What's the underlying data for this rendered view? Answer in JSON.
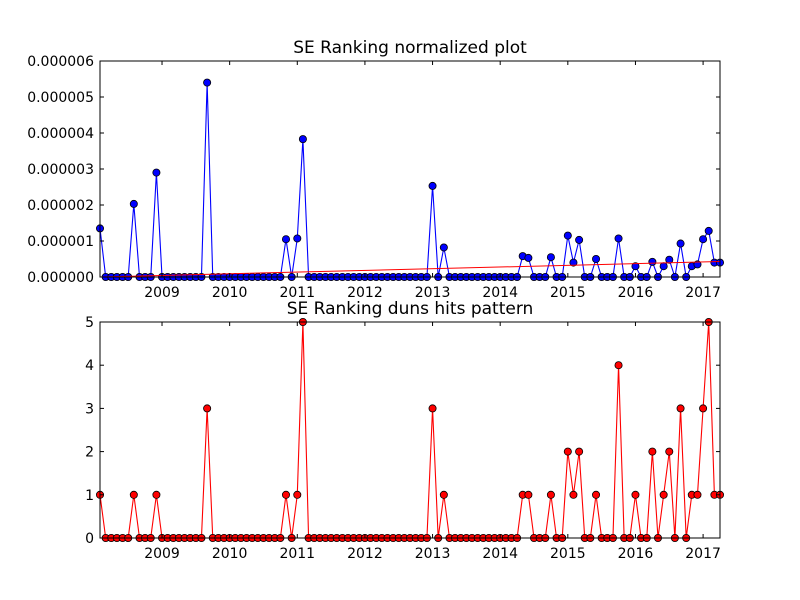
{
  "colors": {
    "blue": "#0000ff",
    "red": "#ff0000",
    "trend": "#ff0000"
  },
  "chart_data": [
    {
      "type": "line",
      "title": "SE Ranking normalized plot",
      "xlabel": "",
      "ylabel": "",
      "xlim": [
        2008.083,
        2017.25
      ],
      "ylim": [
        0,
        6e-06
      ],
      "yticks": [
        "0.000000",
        "0.000001",
        "0.000002",
        "0.000003",
        "0.000004",
        "0.000005",
        "0.000006"
      ],
      "ytick_values": [
        0,
        1e-06,
        2e-06,
        3e-06,
        4e-06,
        5e-06,
        6e-06
      ],
      "xticks": [
        "2009",
        "2010",
        "2011",
        "2012",
        "2013",
        "2014",
        "2015",
        "2016",
        "2017"
      ],
      "xtick_values": [
        2009,
        2010,
        2011,
        2012,
        2013,
        2014,
        2015,
        2016,
        2017
      ],
      "grid": false,
      "series": [
        {
          "values": [
            [
              2008.083,
              1.35e-06
            ],
            [
              2008.167,
              0
            ],
            [
              2008.25,
              0
            ],
            [
              2008.333,
              0
            ],
            [
              2008.417,
              0
            ],
            [
              2008.5,
              0
            ],
            [
              2008.583,
              2.03e-06
            ],
            [
              2008.667,
              0
            ],
            [
              2008.75,
              0
            ],
            [
              2008.833,
              0
            ],
            [
              2008.917,
              2.9e-06
            ],
            [
              2009.0,
              0
            ],
            [
              2009.083,
              0
            ],
            [
              2009.167,
              0
            ],
            [
              2009.25,
              0
            ],
            [
              2009.333,
              0
            ],
            [
              2009.417,
              0
            ],
            [
              2009.5,
              0
            ],
            [
              2009.583,
              0
            ],
            [
              2009.667,
              5.4e-06
            ],
            [
              2009.75,
              0
            ],
            [
              2009.833,
              0
            ],
            [
              2009.917,
              0
            ],
            [
              2010.0,
              0
            ],
            [
              2010.083,
              0
            ],
            [
              2010.167,
              0
            ],
            [
              2010.25,
              0
            ],
            [
              2010.333,
              0
            ],
            [
              2010.417,
              0
            ],
            [
              2010.5,
              0
            ],
            [
              2010.583,
              0
            ],
            [
              2010.667,
              0
            ],
            [
              2010.75,
              0
            ],
            [
              2010.833,
              1.05e-06
            ],
            [
              2010.917,
              0
            ],
            [
              2011.0,
              1.07e-06
            ],
            [
              2011.083,
              3.83e-06
            ],
            [
              2011.167,
              0
            ],
            [
              2011.25,
              0
            ],
            [
              2011.333,
              0
            ],
            [
              2011.417,
              0
            ],
            [
              2011.5,
              0
            ],
            [
              2011.583,
              0
            ],
            [
              2011.667,
              0
            ],
            [
              2011.75,
              0
            ],
            [
              2011.833,
              0
            ],
            [
              2011.917,
              0
            ],
            [
              2012.0,
              0
            ],
            [
              2012.083,
              0
            ],
            [
              2012.167,
              0
            ],
            [
              2012.25,
              0
            ],
            [
              2012.333,
              0
            ],
            [
              2012.417,
              0
            ],
            [
              2012.5,
              0
            ],
            [
              2012.583,
              0
            ],
            [
              2012.667,
              0
            ],
            [
              2012.75,
              0
            ],
            [
              2012.833,
              0
            ],
            [
              2012.917,
              0
            ],
            [
              2013.0,
              2.53e-06
            ],
            [
              2013.083,
              0
            ],
            [
              2013.167,
              8.2e-07
            ],
            [
              2013.25,
              0
            ],
            [
              2013.333,
              0
            ],
            [
              2013.417,
              0
            ],
            [
              2013.5,
              0
            ],
            [
              2013.583,
              0
            ],
            [
              2013.667,
              0
            ],
            [
              2013.75,
              0
            ],
            [
              2013.833,
              0
            ],
            [
              2013.917,
              0
            ],
            [
              2014.0,
              0
            ],
            [
              2014.083,
              0
            ],
            [
              2014.167,
              0
            ],
            [
              2014.25,
              0
            ],
            [
              2014.333,
              5.8e-07
            ],
            [
              2014.417,
              5.3e-07
            ],
            [
              2014.5,
              0
            ],
            [
              2014.583,
              0
            ],
            [
              2014.667,
              0
            ],
            [
              2014.75,
              5.5e-07
            ],
            [
              2014.833,
              0
            ],
            [
              2014.917,
              0
            ],
            [
              2015.0,
              1.15e-06
            ],
            [
              2015.083,
              4e-07
            ],
            [
              2015.167,
              1.03e-06
            ],
            [
              2015.25,
              0
            ],
            [
              2015.333,
              0
            ],
            [
              2015.417,
              5e-07
            ],
            [
              2015.5,
              0
            ],
            [
              2015.583,
              0
            ],
            [
              2015.667,
              0
            ],
            [
              2015.75,
              1.07e-06
            ],
            [
              2015.833,
              0
            ],
            [
              2015.917,
              0
            ],
            [
              2016.0,
              3e-07
            ],
            [
              2016.083,
              0
            ],
            [
              2016.167,
              0
            ],
            [
              2016.25,
              4.2e-07
            ],
            [
              2016.333,
              0
            ],
            [
              2016.417,
              3e-07
            ],
            [
              2016.5,
              4.8e-07
            ],
            [
              2016.583,
              0
            ],
            [
              2016.667,
              9.3e-07
            ],
            [
              2016.75,
              0
            ],
            [
              2016.833,
              3e-07
            ],
            [
              2016.917,
              3.5e-07
            ],
            [
              2017.0,
              1.05e-06
            ],
            [
              2017.083,
              1.28e-06
            ],
            [
              2017.167,
              4e-07
            ],
            [
              2017.25,
              4e-07
            ]
          ]
        },
        {
          "style": "trend",
          "values": [
            [
              2008.083,
              0
            ],
            [
              2017.25,
              4.3e-07
            ]
          ]
        }
      ]
    },
    {
      "type": "line",
      "title": "SE Ranking duns hits pattern",
      "xlabel": "",
      "ylabel": "",
      "xlim": [
        2008.083,
        2017.25
      ],
      "ylim": [
        0,
        5
      ],
      "yticks": [
        "0",
        "1",
        "2",
        "3",
        "4",
        "5"
      ],
      "ytick_values": [
        0,
        1,
        2,
        3,
        4,
        5
      ],
      "xticks": [
        "2009",
        "2010",
        "2011",
        "2012",
        "2013",
        "2014",
        "2015",
        "2016",
        "2017"
      ],
      "xtick_values": [
        2009,
        2010,
        2011,
        2012,
        2013,
        2014,
        2015,
        2016,
        2017
      ],
      "grid": false,
      "series": [
        {
          "values": [
            [
              2008.083,
              1
            ],
            [
              2008.167,
              0
            ],
            [
              2008.25,
              0
            ],
            [
              2008.333,
              0
            ],
            [
              2008.417,
              0
            ],
            [
              2008.5,
              0
            ],
            [
              2008.583,
              1
            ],
            [
              2008.667,
              0
            ],
            [
              2008.75,
              0
            ],
            [
              2008.833,
              0
            ],
            [
              2008.917,
              1
            ],
            [
              2009.0,
              0
            ],
            [
              2009.083,
              0
            ],
            [
              2009.167,
              0
            ],
            [
              2009.25,
              0
            ],
            [
              2009.333,
              0
            ],
            [
              2009.417,
              0
            ],
            [
              2009.5,
              0
            ],
            [
              2009.583,
              0
            ],
            [
              2009.667,
              3
            ],
            [
              2009.75,
              0
            ],
            [
              2009.833,
              0
            ],
            [
              2009.917,
              0
            ],
            [
              2010.0,
              0
            ],
            [
              2010.083,
              0
            ],
            [
              2010.167,
              0
            ],
            [
              2010.25,
              0
            ],
            [
              2010.333,
              0
            ],
            [
              2010.417,
              0
            ],
            [
              2010.5,
              0
            ],
            [
              2010.583,
              0
            ],
            [
              2010.667,
              0
            ],
            [
              2010.75,
              0
            ],
            [
              2010.833,
              1
            ],
            [
              2010.917,
              0
            ],
            [
              2011.0,
              1
            ],
            [
              2011.083,
              5
            ],
            [
              2011.167,
              0
            ],
            [
              2011.25,
              0
            ],
            [
              2011.333,
              0
            ],
            [
              2011.417,
              0
            ],
            [
              2011.5,
              0
            ],
            [
              2011.583,
              0
            ],
            [
              2011.667,
              0
            ],
            [
              2011.75,
              0
            ],
            [
              2011.833,
              0
            ],
            [
              2011.917,
              0
            ],
            [
              2012.0,
              0
            ],
            [
              2012.083,
              0
            ],
            [
              2012.167,
              0
            ],
            [
              2012.25,
              0
            ],
            [
              2012.333,
              0
            ],
            [
              2012.417,
              0
            ],
            [
              2012.5,
              0
            ],
            [
              2012.583,
              0
            ],
            [
              2012.667,
              0
            ],
            [
              2012.75,
              0
            ],
            [
              2012.833,
              0
            ],
            [
              2012.917,
              0
            ],
            [
              2013.0,
              3
            ],
            [
              2013.083,
              0
            ],
            [
              2013.167,
              1
            ],
            [
              2013.25,
              0
            ],
            [
              2013.333,
              0
            ],
            [
              2013.417,
              0
            ],
            [
              2013.5,
              0
            ],
            [
              2013.583,
              0
            ],
            [
              2013.667,
              0
            ],
            [
              2013.75,
              0
            ],
            [
              2013.833,
              0
            ],
            [
              2013.917,
              0
            ],
            [
              2014.0,
              0
            ],
            [
              2014.083,
              0
            ],
            [
              2014.167,
              0
            ],
            [
              2014.25,
              0
            ],
            [
              2014.333,
              1
            ],
            [
              2014.417,
              1
            ],
            [
              2014.5,
              0
            ],
            [
              2014.583,
              0
            ],
            [
              2014.667,
              0
            ],
            [
              2014.75,
              1
            ],
            [
              2014.833,
              0
            ],
            [
              2014.917,
              0
            ],
            [
              2015.0,
              2
            ],
            [
              2015.083,
              1
            ],
            [
              2015.167,
              2
            ],
            [
              2015.25,
              0
            ],
            [
              2015.333,
              0
            ],
            [
              2015.417,
              1
            ],
            [
              2015.5,
              0
            ],
            [
              2015.583,
              0
            ],
            [
              2015.667,
              0
            ],
            [
              2015.75,
              4
            ],
            [
              2015.833,
              0
            ],
            [
              2015.917,
              0
            ],
            [
              2016.0,
              1
            ],
            [
              2016.083,
              0
            ],
            [
              2016.167,
              0
            ],
            [
              2016.25,
              2
            ],
            [
              2016.333,
              0
            ],
            [
              2016.417,
              1
            ],
            [
              2016.5,
              2
            ],
            [
              2016.583,
              0
            ],
            [
              2016.667,
              3
            ],
            [
              2016.75,
              0
            ],
            [
              2016.833,
              1
            ],
            [
              2016.917,
              1
            ],
            [
              2017.0,
              3
            ],
            [
              2017.083,
              5
            ],
            [
              2017.167,
              1
            ],
            [
              2017.25,
              1
            ]
          ]
        }
      ]
    }
  ]
}
